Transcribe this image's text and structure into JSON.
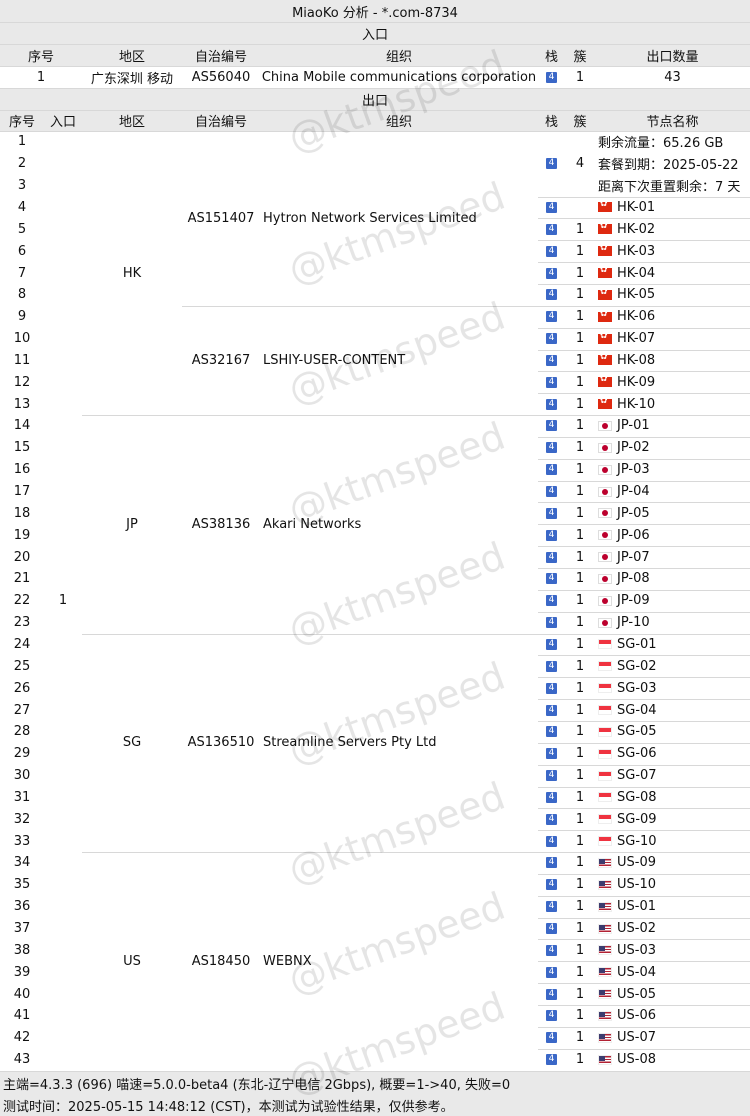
{
  "title": "MiaoKo 分析 - *.com-8734",
  "entry_label": "入口",
  "exit_label": "出口",
  "entry_headers": [
    "序号",
    "地区",
    "自治编号",
    "组织",
    "栈",
    "簇",
    "出口数量"
  ],
  "entry_row": {
    "index": "1",
    "region": "广东深圳 移动",
    "asn": "AS56040",
    "org": "China Mobile communications corporation",
    "stack": "4",
    "cluster": "1",
    "count": "43"
  },
  "exit_headers": [
    "序号",
    "入口",
    "地区",
    "自治编号",
    "组织",
    "栈",
    "簇",
    "节点名称"
  ],
  "exit_entry": "1",
  "info_lines": [
    "剩余流量：65.26 GB",
    "套餐到期：2025-05-22",
    "距离下次重置剩余：7 天"
  ],
  "info_group": {
    "stack": "4",
    "cluster": "4"
  },
  "regions": [
    {
      "name": "HK",
      "start": 1,
      "end": 13
    },
    {
      "name": "JP",
      "start": 14,
      "end": 23
    },
    {
      "name": "SG",
      "start": 24,
      "end": 33
    },
    {
      "name": "US",
      "start": 34,
      "end": 43
    }
  ],
  "as_groups": [
    {
      "asn": "AS151407",
      "org": "Hytron Network Services Limited",
      "start": 1,
      "end": 8
    },
    {
      "asn": "AS32167",
      "org": "LSHIY-USER-CONTENT",
      "start": 9,
      "end": 13
    },
    {
      "asn": "AS38136",
      "org": "Akari Networks",
      "start": 14,
      "end": 23
    },
    {
      "asn": "AS136510",
      "org": "Streamline Servers Pty Ltd",
      "start": 24,
      "end": 33
    },
    {
      "asn": "AS18450",
      "org": "WEBNX",
      "start": 34,
      "end": 43
    }
  ],
  "nodes": [
    {
      "row": 4,
      "name": "HK-01",
      "flag": "hk",
      "stack": "4",
      "cluster": ""
    },
    {
      "row": 5,
      "name": "HK-02",
      "flag": "hk",
      "stack": "4",
      "cluster": "1"
    },
    {
      "row": 6,
      "name": "HK-03",
      "flag": "hk",
      "stack": "4",
      "cluster": "1"
    },
    {
      "row": 7,
      "name": "HK-04",
      "flag": "hk",
      "stack": "4",
      "cluster": "1"
    },
    {
      "row": 8,
      "name": "HK-05",
      "flag": "hk",
      "stack": "4",
      "cluster": "1"
    },
    {
      "row": 9,
      "name": "HK-06",
      "flag": "hk",
      "stack": "4",
      "cluster": "1"
    },
    {
      "row": 10,
      "name": "HK-07",
      "flag": "hk",
      "stack": "4",
      "cluster": "1"
    },
    {
      "row": 11,
      "name": "HK-08",
      "flag": "hk",
      "stack": "4",
      "cluster": "1"
    },
    {
      "row": 12,
      "name": "HK-09",
      "flag": "hk",
      "stack": "4",
      "cluster": "1"
    },
    {
      "row": 13,
      "name": "HK-10",
      "flag": "hk",
      "stack": "4",
      "cluster": "1"
    },
    {
      "row": 14,
      "name": "JP-01",
      "flag": "jp",
      "stack": "4",
      "cluster": "1"
    },
    {
      "row": 15,
      "name": "JP-02",
      "flag": "jp",
      "stack": "4",
      "cluster": "1"
    },
    {
      "row": 16,
      "name": "JP-03",
      "flag": "jp",
      "stack": "4",
      "cluster": "1"
    },
    {
      "row": 17,
      "name": "JP-04",
      "flag": "jp",
      "stack": "4",
      "cluster": "1"
    },
    {
      "row": 18,
      "name": "JP-05",
      "flag": "jp",
      "stack": "4",
      "cluster": "1"
    },
    {
      "row": 19,
      "name": "JP-06",
      "flag": "jp",
      "stack": "4",
      "cluster": "1"
    },
    {
      "row": 20,
      "name": "JP-07",
      "flag": "jp",
      "stack": "4",
      "cluster": "1"
    },
    {
      "row": 21,
      "name": "JP-08",
      "flag": "jp",
      "stack": "4",
      "cluster": "1"
    },
    {
      "row": 22,
      "name": "JP-09",
      "flag": "jp",
      "stack": "4",
      "cluster": "1"
    },
    {
      "row": 23,
      "name": "JP-10",
      "flag": "jp",
      "stack": "4",
      "cluster": "1"
    },
    {
      "row": 24,
      "name": "SG-01",
      "flag": "sg",
      "stack": "4",
      "cluster": "1"
    },
    {
      "row": 25,
      "name": "SG-02",
      "flag": "sg",
      "stack": "4",
      "cluster": "1"
    },
    {
      "row": 26,
      "name": "SG-03",
      "flag": "sg",
      "stack": "4",
      "cluster": "1"
    },
    {
      "row": 27,
      "name": "SG-04",
      "flag": "sg",
      "stack": "4",
      "cluster": "1"
    },
    {
      "row": 28,
      "name": "SG-05",
      "flag": "sg",
      "stack": "4",
      "cluster": "1"
    },
    {
      "row": 29,
      "name": "SG-06",
      "flag": "sg",
      "stack": "4",
      "cluster": "1"
    },
    {
      "row": 30,
      "name": "SG-07",
      "flag": "sg",
      "stack": "4",
      "cluster": "1"
    },
    {
      "row": 31,
      "name": "SG-08",
      "flag": "sg",
      "stack": "4",
      "cluster": "1"
    },
    {
      "row": 32,
      "name": "SG-09",
      "flag": "sg",
      "stack": "4",
      "cluster": "1"
    },
    {
      "row": 33,
      "name": "SG-10",
      "flag": "sg",
      "stack": "4",
      "cluster": "1"
    },
    {
      "row": 34,
      "name": "US-09",
      "flag": "us",
      "stack": "4",
      "cluster": "1"
    },
    {
      "row": 35,
      "name": "US-10",
      "flag": "us",
      "stack": "4",
      "cluster": "1"
    },
    {
      "row": 36,
      "name": "US-01",
      "flag": "us",
      "stack": "4",
      "cluster": "1"
    },
    {
      "row": 37,
      "name": "US-02",
      "flag": "us",
      "stack": "4",
      "cluster": "1"
    },
    {
      "row": 38,
      "name": "US-03",
      "flag": "us",
      "stack": "4",
      "cluster": "1"
    },
    {
      "row": 39,
      "name": "US-04",
      "flag": "us",
      "stack": "4",
      "cluster": "1"
    },
    {
      "row": 40,
      "name": "US-05",
      "flag": "us",
      "stack": "4",
      "cluster": "1"
    },
    {
      "row": 41,
      "name": "US-06",
      "flag": "us",
      "stack": "4",
      "cluster": "1"
    },
    {
      "row": 42,
      "name": "US-07",
      "flag": "us",
      "stack": "4",
      "cluster": "1"
    },
    {
      "row": 43,
      "name": "US-08",
      "flag": "us",
      "stack": "4",
      "cluster": "1"
    }
  ],
  "footer": [
    "主端=4.3.3 (696) 喵速=5.0.0-beta4 (东北-辽宁电信 2Gbps), 概要=1->40, 失败=0",
    "测试时间：2025-05-15 14:48:12 (CST)，本测试为试验性结果，仅供参考。"
  ],
  "watermark": "@ktmspeed",
  "colors": {
    "band": "#e9e9e9",
    "stack_tag": "#3a67c7",
    "rule": "#d8d8d8"
  }
}
